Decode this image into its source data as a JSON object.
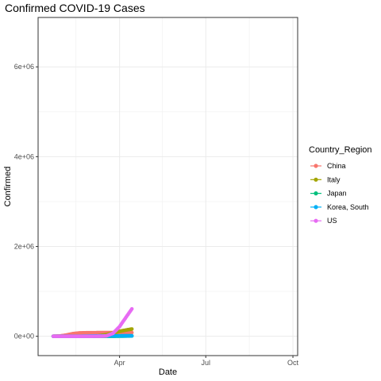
{
  "chart_data": {
    "type": "line",
    "title": "Confirmed COVID-19 Cases",
    "xlabel": "Date",
    "ylabel": "Confirmed",
    "x_type": "date",
    "xlim": [
      "2020-01-06",
      "2020-10-06"
    ],
    "ylim": [
      -430000,
      7100000
    ],
    "x_ticks": [
      {
        "date": "2020-04-01",
        "label": "Apr"
      },
      {
        "date": "2020-07-01",
        "label": "Jul"
      },
      {
        "date": "2020-10-01",
        "label": "Oct"
      }
    ],
    "y_ticks": [
      {
        "value": 0,
        "label": "0e+00"
      },
      {
        "value": 2000000,
        "label": "2e+06"
      },
      {
        "value": 4000000,
        "label": "4e+06"
      },
      {
        "value": 6000000,
        "label": "6e+06"
      }
    ],
    "grid": true,
    "legend": {
      "title": "Country_Region",
      "position": "right"
    },
    "series": [
      {
        "name": "China",
        "color": "#F8766D",
        "points": [
          [
            "2020-01-22",
            548
          ],
          [
            "2020-01-29",
            6000
          ],
          [
            "2020-02-05",
            28000
          ],
          [
            "2020-02-12",
            60000
          ],
          [
            "2020-02-19",
            74500
          ],
          [
            "2020-02-26",
            78500
          ],
          [
            "2020-03-04",
            80400
          ],
          [
            "2020-03-11",
            80900
          ],
          [
            "2020-03-18",
            81100
          ],
          [
            "2020-03-25",
            81600
          ],
          [
            "2020-04-01",
            82300
          ],
          [
            "2020-04-08",
            82800
          ],
          [
            "2020-04-14",
            83300
          ]
        ]
      },
      {
        "name": "Italy",
        "color": "#A3A500",
        "points": [
          [
            "2020-01-22",
            0
          ],
          [
            "2020-02-12",
            3
          ],
          [
            "2020-02-26",
            450
          ],
          [
            "2020-03-04",
            3100
          ],
          [
            "2020-03-11",
            12500
          ],
          [
            "2020-03-18",
            36000
          ],
          [
            "2020-03-25",
            74000
          ],
          [
            "2020-04-01",
            110000
          ],
          [
            "2020-04-08",
            140000
          ],
          [
            "2020-04-14",
            162000
          ]
        ]
      },
      {
        "name": "Japan",
        "color": "#00BF7D",
        "points": [
          [
            "2020-01-22",
            2
          ],
          [
            "2020-02-12",
            28
          ],
          [
            "2020-03-04",
            300
          ],
          [
            "2020-03-25",
            1300
          ],
          [
            "2020-04-08",
            4700
          ],
          [
            "2020-04-14",
            7600
          ]
        ]
      },
      {
        "name": "Korea, South",
        "color": "#00B0F6",
        "points": [
          [
            "2020-01-22",
            1
          ],
          [
            "2020-02-12",
            28
          ],
          [
            "2020-02-26",
            1600
          ],
          [
            "2020-03-04",
            5600
          ],
          [
            "2020-03-11",
            7800
          ],
          [
            "2020-03-25",
            9100
          ],
          [
            "2020-04-08",
            10400
          ],
          [
            "2020-04-14",
            10600
          ]
        ]
      },
      {
        "name": "US",
        "color": "#E76BF3",
        "points": [
          [
            "2020-01-22",
            1
          ],
          [
            "2020-02-26",
            60
          ],
          [
            "2020-03-11",
            1300
          ],
          [
            "2020-03-18",
            7800
          ],
          [
            "2020-03-25",
            66000
          ],
          [
            "2020-04-01",
            215000
          ],
          [
            "2020-04-08",
            430000
          ],
          [
            "2020-04-14",
            610000
          ]
        ]
      }
    ]
  }
}
